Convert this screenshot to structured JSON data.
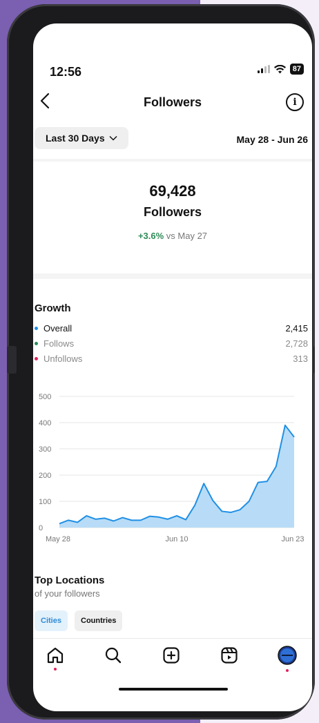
{
  "status_bar": {
    "time": "12:56",
    "battery": "87"
  },
  "header": {
    "title": "Followers",
    "info_glyph": "i"
  },
  "filter": {
    "range_label": "Last 30 Days",
    "date_range": "May 28 - Jun 26"
  },
  "summary": {
    "count": "69,428",
    "label": "Followers",
    "change_pct": "+3.6%",
    "change_ref": "vs May 27"
  },
  "growth": {
    "title": "Growth",
    "legend": [
      {
        "label": "Overall",
        "value": "2,415",
        "color": "#1f8fe5",
        "text_color": "#111111"
      },
      {
        "label": "Follows",
        "value": "2,728",
        "color": "#2e8b57",
        "text_color": "#8a8a8a"
      },
      {
        "label": "Unfollows",
        "value": "313",
        "color": "#e0245e",
        "text_color": "#8a8a8a"
      }
    ]
  },
  "chart_data": {
    "type": "area",
    "series": [
      {
        "name": "Overall",
        "color": "#1f8fe5",
        "values": [
          15,
          28,
          20,
          45,
          32,
          36,
          25,
          38,
          28,
          28,
          43,
          40,
          32,
          45,
          30,
          85,
          168,
          103,
          62,
          58,
          68,
          100,
          172,
          176,
          233,
          390,
          345
        ]
      }
    ],
    "ylim": [
      0,
      500
    ],
    "yticks": [
      "0",
      "100",
      "200",
      "300",
      "400",
      "500"
    ],
    "xtick_labels": [
      "May 28",
      "Jun 10",
      "Jun 23"
    ],
    "grid": true
  },
  "locations": {
    "title": "Top Locations",
    "subtitle": "of your followers",
    "tab_cities": "Cities",
    "tab_countries": "Countries"
  },
  "tabbar": {
    "items": [
      "home-icon",
      "search-icon",
      "create-icon",
      "reels-icon",
      "profile-avatar"
    ]
  }
}
